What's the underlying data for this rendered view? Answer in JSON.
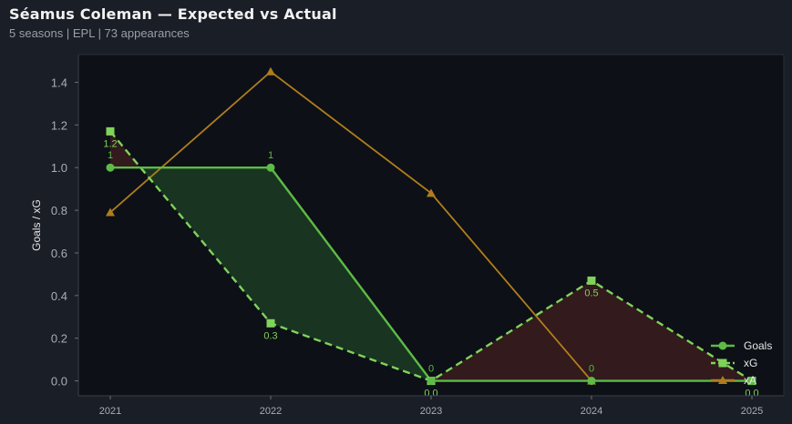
{
  "header": {
    "title": "Séamus Coleman — Expected vs Actual",
    "subtitle": "5 seasons | EPL | 73 appearances"
  },
  "colors": {
    "goals": "#5dbb46",
    "xg": "#7fd35a",
    "xa": "#b07d1e",
    "over_fill": "#1b3a22",
    "under_fill": "#3a1c1e",
    "plot_bg": "#0d1016",
    "page_bg": "#1a1e26"
  },
  "chart_data": {
    "type": "line",
    "x": [
      "2021",
      "2022",
      "2023",
      "2024",
      "2025"
    ],
    "ylabel": "Goals / xG",
    "ylim": [
      -0.07,
      1.53
    ],
    "yticks": [
      "0.0",
      "0.2",
      "0.4",
      "0.6",
      "0.8",
      "1.0",
      "1.2",
      "1.4"
    ],
    "grid": false,
    "legend_position": "bottom-right",
    "series": [
      {
        "name": "Goals",
        "values": [
          1,
          1,
          0,
          0,
          0
        ],
        "marker": "circle",
        "style": "solid",
        "labels": [
          "1",
          "1",
          "0",
          "0",
          ""
        ]
      },
      {
        "name": "xG",
        "values": [
          1.17,
          0.27,
          0.0,
          0.47,
          0.0
        ],
        "marker": "square",
        "style": "dashed",
        "labels": [
          "1.2",
          "0.3",
          "0.0",
          "0.5",
          "0.0"
        ]
      },
      {
        "name": "xA",
        "values": [
          0.79,
          1.45,
          0.88,
          0.0,
          0.0
        ],
        "marker": "triangle",
        "style": "solid",
        "labels": []
      }
    ]
  }
}
